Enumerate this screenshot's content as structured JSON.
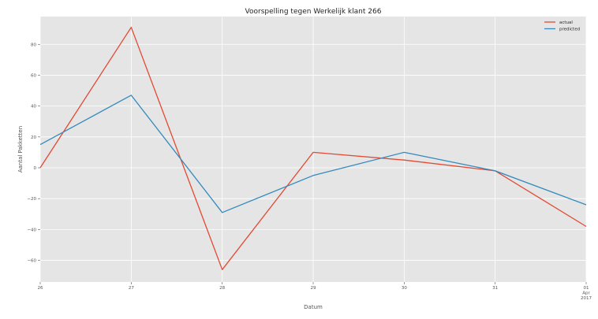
{
  "chart_data": {
    "type": "line",
    "title": "Voorspelling tegen Werkelijk klant 266",
    "xlabel": "Datum",
    "ylabel": "Aantal Pakketten",
    "x": [
      "26",
      "27",
      "28",
      "29",
      "30",
      "31",
      "01\nApr\n2017"
    ],
    "x_tick_labels": [
      [
        "26"
      ],
      [
        "27"
      ],
      [
        "28"
      ],
      [
        "29"
      ],
      [
        "30"
      ],
      [
        "31"
      ],
      [
        "01",
        "Apr",
        "2017"
      ]
    ],
    "series": [
      {
        "name": "actual",
        "color": "#E24A33",
        "values": [
          0,
          91,
          -66,
          10,
          5,
          -2,
          -38
        ]
      },
      {
        "name": "predicted",
        "color": "#348ABD",
        "values": [
          15,
          47,
          -29,
          -5,
          10,
          -2,
          -24
        ]
      }
    ],
    "ylim": [
      -74,
      98
    ],
    "yticks": [
      -60,
      -40,
      -20,
      0,
      20,
      40,
      60,
      80
    ],
    "grid": true,
    "legend_position": "top-right",
    "style": "ggplot",
    "background_color": "#E5E5E5",
    "grid_color": "#FFFFFF"
  }
}
